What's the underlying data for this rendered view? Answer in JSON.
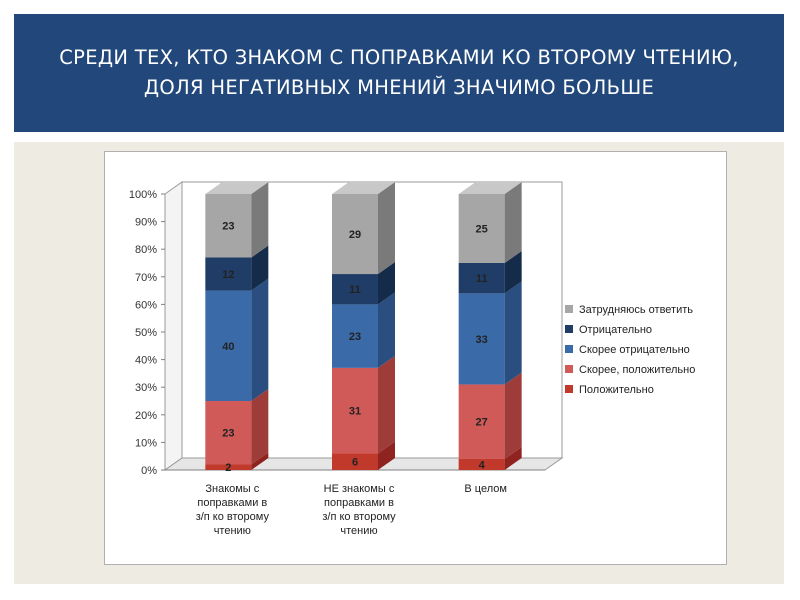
{
  "header": {
    "title": "СРЕДИ ТЕХ, КТО ЗНАКОМ С ПОПРАВКАМИ КО ВТОРОМУ ЧТЕНИЮ, ДОЛЯ НЕГАТИВНЫХ МНЕНИЙ ЗНАЧИМО БОЛЬШЕ"
  },
  "colors": {
    "banner": "#22477a",
    "panel": "#eeebe3"
  },
  "chart_data": {
    "type": "bar",
    "stacked": true,
    "percent_stacked": true,
    "three_d": true,
    "title": "",
    "xlabel": "",
    "ylabel": "",
    "ylim": [
      0,
      100
    ],
    "y_ticks": [
      "0%",
      "10%",
      "20%",
      "30%",
      "40%",
      "50%",
      "60%",
      "70%",
      "80%",
      "90%",
      "100%"
    ],
    "grid": false,
    "legend_position": "right",
    "categories": [
      "Знакомы с поправками в з/п ко второму чтению",
      "НЕ знакомы с поправками в з/п ко второму чтению",
      "В целом"
    ],
    "category_lines": [
      [
        "Знакомы с",
        "поправками в",
        "з/п ко второму",
        "чтению"
      ],
      [
        "НЕ знакомы с",
        "поправками в",
        "з/п ко второму",
        "чтению"
      ],
      [
        "В целом"
      ]
    ],
    "series": [
      {
        "name": "Положительно",
        "values": [
          2,
          6,
          4
        ],
        "color": "#c0392b",
        "side": "#8e2320",
        "top": "#d86a62"
      },
      {
        "name": "Скорее, положительно",
        "values": [
          23,
          31,
          27
        ],
        "color": "#d05a57",
        "side": "#9e3c3a",
        "top": "#e08a87"
      },
      {
        "name": "Скорее отрицательно",
        "values": [
          40,
          23,
          33
        ],
        "color": "#3a6aa8",
        "side": "#2a4e80",
        "top": "#6c95c8"
      },
      {
        "name": "Отрицательно",
        "values": [
          12,
          11,
          11
        ],
        "color": "#1f3d66",
        "side": "#152b4a",
        "top": "#3d5f8e"
      },
      {
        "name": "Затрудняюсь ответить",
        "values": [
          23,
          29,
          25
        ],
        "color": "#a6a6a6",
        "side": "#7a7a7a",
        "top": "#c8c8c8"
      }
    ],
    "legend_order": [
      "Затрудняюсь ответить",
      "Отрицательно",
      "Скорее отрицательно",
      "Скорее, положительно",
      "Положительно"
    ]
  }
}
